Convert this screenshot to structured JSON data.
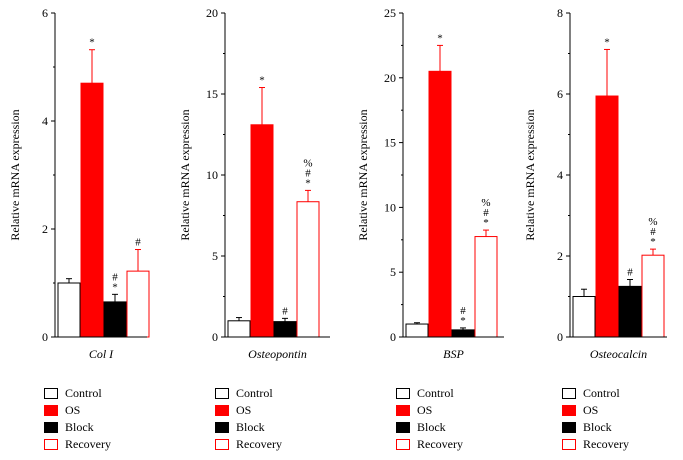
{
  "chart_data": [
    {
      "type": "bar",
      "xlabel": "Col I",
      "ylabel": "Relative mRNA expression",
      "ylim": [
        0,
        6
      ],
      "yticks": [
        0,
        2,
        4,
        6
      ],
      "categories": [
        "Control",
        "OS",
        "Block",
        "Recovery"
      ],
      "values": [
        1.0,
        4.7,
        0.65,
        1.22
      ],
      "errors": [
        0.08,
        0.62,
        0.14,
        0.4
      ],
      "annotations": [
        "",
        "*",
        "#\n*",
        "#"
      ]
    },
    {
      "type": "bar",
      "xlabel": "Osteopontin",
      "ylabel": "Relative mRNA expression",
      "ylim": [
        0,
        20
      ],
      "yticks": [
        0,
        5,
        10,
        15,
        20
      ],
      "categories": [
        "Control",
        "OS",
        "Block",
        "Recovery"
      ],
      "values": [
        1.0,
        13.1,
        0.95,
        8.35
      ],
      "errors": [
        0.2,
        2.3,
        0.2,
        0.7
      ],
      "annotations": [
        "",
        "*",
        "#",
        "%\n#\n*"
      ]
    },
    {
      "type": "bar",
      "xlabel": "BSP",
      "ylabel": "Relative mRNA expression",
      "ylim": [
        0,
        25
      ],
      "yticks": [
        0,
        5,
        10,
        15,
        20,
        25
      ],
      "categories": [
        "Control",
        "OS",
        "Block",
        "Recovery"
      ],
      "values": [
        1.0,
        20.5,
        0.55,
        7.75
      ],
      "errors": [
        0.1,
        2.0,
        0.15,
        0.5
      ],
      "annotations": [
        "",
        "*",
        "#\n*",
        "%\n#\n*"
      ]
    },
    {
      "type": "bar",
      "xlabel": "Osteocalcin",
      "ylabel": "Relative mRNA expression",
      "ylim": [
        0,
        8
      ],
      "yticks": [
        0,
        2,
        4,
        6,
        8
      ],
      "categories": [
        "Control",
        "OS",
        "Block",
        "Recovery"
      ],
      "values": [
        1.0,
        5.95,
        1.25,
        2.02
      ],
      "errors": [
        0.18,
        1.15,
        0.17,
        0.15
      ],
      "annotations": [
        "",
        "*",
        "#",
        "%\n#\n*"
      ]
    }
  ],
  "legend": [
    {
      "label": "Control",
      "fill": "#ffffff",
      "stroke": "#000000"
    },
    {
      "label": "OS",
      "fill": "#ff0000",
      "stroke": "#ff0000"
    },
    {
      "label": "Block",
      "fill": "#000000",
      "stroke": "#000000"
    },
    {
      "label": "Recovery",
      "fill": "#ffffff",
      "stroke": "#ff0000"
    }
  ]
}
